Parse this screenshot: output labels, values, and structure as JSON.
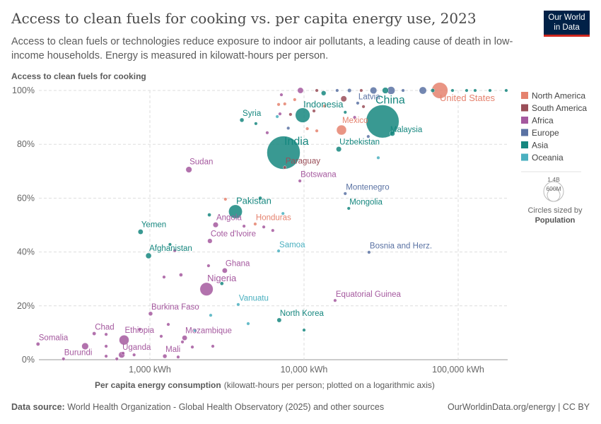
{
  "header": {
    "title": "Access to clean fuels for cooking vs. per capita energy use, 2023",
    "subtitle": "Access to clean fuels or technologies reduce exposure to indoor air pollutants, a leading cause of death in low-income households. Energy is measured in kilowatt-hours per person.",
    "logo": "Our World in Data"
  },
  "footer": {
    "source_label": "Data source:",
    "source": "World Health Organization - Global Health Observatory (2025) and other sources",
    "url": "OurWorldinData.org/energy | CC BY"
  },
  "legend": {
    "size_values": [
      "1.4B",
      "600M"
    ],
    "size_caption": "Circles sized by",
    "size_variable": "Population"
  },
  "chart_data": {
    "type": "scatter",
    "ylabel": "Access to clean fuels for cooking",
    "xlabel": "Per capita energy consumption",
    "xlabel_note": "(kilowatt-hours per person; plotted on a logarithmic axis)",
    "x_scale": "log",
    "xlim": [
      190,
      210000
    ],
    "ylim": [
      0,
      100
    ],
    "x_ticks": [
      1000,
      10000,
      100000
    ],
    "x_tick_labels": [
      "1,000 kWh",
      "10,000 kWh",
      "100,000 kWh"
    ],
    "y_ticks": [
      0,
      20,
      40,
      60,
      80,
      100
    ],
    "y_tick_labels": [
      "0%",
      "20%",
      "40%",
      "60%",
      "80%",
      "100%"
    ],
    "grid": true,
    "legend_position": "right",
    "regions": [
      {
        "name": "North America",
        "color": "#e5826e"
      },
      {
        "name": "South America",
        "color": "#9a4e58"
      },
      {
        "name": "Africa",
        "color": "#a5599f"
      },
      {
        "name": "Europe",
        "color": "#5a72a3"
      },
      {
        "name": "Asia",
        "color": "#16877f"
      },
      {
        "name": "Oceania",
        "color": "#4bb0c0"
      }
    ],
    "points": [
      {
        "name": "United States",
        "x": 76000,
        "y": 100,
        "region": "North America",
        "pop": 335
      },
      {
        "name": "China",
        "x": 32300,
        "y": 88.5,
        "region": "Asia",
        "pop": 1410
      },
      {
        "name": "India",
        "x": 7360,
        "y": 76.9,
        "region": "Asia",
        "pop": 1430
      },
      {
        "name": "Indonesia",
        "x": 9800,
        "y": 90.8,
        "region": "Asia",
        "pop": 277
      },
      {
        "name": "Malaysia",
        "x": 37400,
        "y": 84,
        "region": "Asia",
        "pop": 34
      },
      {
        "name": "Mexico",
        "x": 17500,
        "y": 85.3,
        "region": "North America",
        "pop": 128
      },
      {
        "name": "Latvia",
        "x": 22300,
        "y": 95.3,
        "region": "Europe",
        "pop": 2
      },
      {
        "name": "Uzbekistan",
        "x": 16800,
        "y": 78.2,
        "region": "Asia",
        "pop": 36
      },
      {
        "name": "Paraguay",
        "x": 7500,
        "y": 71.4,
        "region": "South America",
        "pop": 7
      },
      {
        "name": "Botswana",
        "x": 9400,
        "y": 66.4,
        "region": "Africa",
        "pop": 3
      },
      {
        "name": "Sudan",
        "x": 1790,
        "y": 70.6,
        "region": "Africa",
        "pop": 48
      },
      {
        "name": "Syria",
        "x": 3950,
        "y": 89,
        "region": "Asia",
        "pop": 23
      },
      {
        "name": "Pakistan",
        "x": 3590,
        "y": 55,
        "region": "Asia",
        "pop": 240
      },
      {
        "name": "Angola",
        "x": 2670,
        "y": 50.1,
        "region": "Africa",
        "pop": 37
      },
      {
        "name": "Honduras",
        "x": 4820,
        "y": 50.4,
        "region": "North America",
        "pop": 10
      },
      {
        "name": "Montenegro",
        "x": 18500,
        "y": 61.7,
        "region": "Europe",
        "pop": 1
      },
      {
        "name": "Mongolia",
        "x": 19500,
        "y": 56.2,
        "region": "Asia",
        "pop": 3
      },
      {
        "name": "Yemen",
        "x": 870,
        "y": 47.5,
        "region": "Asia",
        "pop": 34
      },
      {
        "name": "Cote d'Ivoire",
        "x": 2450,
        "y": 44.1,
        "region": "Africa",
        "pop": 29
      },
      {
        "name": "Afghanistan",
        "x": 980,
        "y": 38.6,
        "region": "Asia",
        "pop": 42
      },
      {
        "name": "Samoa",
        "x": 6840,
        "y": 40.4,
        "region": "Oceania",
        "pop": 0.2
      },
      {
        "name": "Bosnia and Herz.",
        "x": 26400,
        "y": 39.9,
        "region": "Europe",
        "pop": 3
      },
      {
        "name": "Ghana",
        "x": 3060,
        "y": 33.1,
        "region": "Africa",
        "pop": 34
      },
      {
        "name": "Nigeria",
        "x": 2330,
        "y": 26.2,
        "region": "Africa",
        "pop": 224
      },
      {
        "name": "Vanuatu",
        "x": 3740,
        "y": 20.5,
        "region": "Oceania",
        "pop": 0.3
      },
      {
        "name": "Equatorial Guinea",
        "x": 15900,
        "y": 22,
        "region": "Africa",
        "pop": 2
      },
      {
        "name": "Burkina Faso",
        "x": 1010,
        "y": 17.1,
        "region": "Africa",
        "pop": 23
      },
      {
        "name": "North Korea",
        "x": 6900,
        "y": 14.7,
        "region": "Asia",
        "pop": 26
      },
      {
        "name": "Chad",
        "x": 435,
        "y": 9.7,
        "region": "Africa",
        "pop": 18
      },
      {
        "name": "Ethiopia",
        "x": 680,
        "y": 7.3,
        "region": "Africa",
        "pop": 127
      },
      {
        "name": "Mozambique",
        "x": 1680,
        "y": 8.1,
        "region": "Africa",
        "pop": 34
      },
      {
        "name": "Somalia",
        "x": 188,
        "y": 5.8,
        "region": "Africa",
        "pop": 18
      },
      {
        "name": "Uganda",
        "x": 656,
        "y": 1.8,
        "region": "Africa",
        "pop": 49
      },
      {
        "name": "Mali",
        "x": 1250,
        "y": 1.3,
        "region": "Africa",
        "pop": 23
      },
      {
        "name": "Burundi",
        "x": 275,
        "y": 0.3,
        "region": "Africa",
        "pop": 13
      },
      {
        "name": "",
        "x": 9480,
        "y": 100,
        "region": "Africa",
        "pop": 45
      },
      {
        "name": "",
        "x": 12100,
        "y": 100,
        "region": "South America",
        "pop": 5
      },
      {
        "name": "",
        "x": 13400,
        "y": 99,
        "region": "Asia",
        "pop": 30
      },
      {
        "name": "",
        "x": 16400,
        "y": 100,
        "region": "Europe",
        "pop": 8
      },
      {
        "name": "",
        "x": 19700,
        "y": 100,
        "region": "Europe",
        "pop": 20
      },
      {
        "name": "",
        "x": 23500,
        "y": 100,
        "region": "South America",
        "pop": 10
      },
      {
        "name": "",
        "x": 28200,
        "y": 100,
        "region": "Europe",
        "pop": 60
      },
      {
        "name": "",
        "x": 33700,
        "y": 100,
        "region": "Asia",
        "pop": 50
      },
      {
        "name": "",
        "x": 36700,
        "y": 100,
        "region": "Europe",
        "pop": 80
      },
      {
        "name": "",
        "x": 43900,
        "y": 100,
        "region": "Europe",
        "pop": 5
      },
      {
        "name": "",
        "x": 59000,
        "y": 100,
        "region": "Europe",
        "pop": 70
      },
      {
        "name": "",
        "x": 68400,
        "y": 100,
        "region": "Asia",
        "pop": 20
      },
      {
        "name": "",
        "x": 91900,
        "y": 100,
        "region": "Asia",
        "pop": 5
      },
      {
        "name": "",
        "x": 113500,
        "y": 100,
        "region": "Asia",
        "pop": 3
      },
      {
        "name": "",
        "x": 128800,
        "y": 100,
        "region": "Asia",
        "pop": 4
      },
      {
        "name": "",
        "x": 160800,
        "y": 100,
        "region": "Asia",
        "pop": 2
      },
      {
        "name": "",
        "x": 205000,
        "y": 100,
        "region": "Asia",
        "pop": 1
      },
      {
        "name": "",
        "x": 7130,
        "y": 98.4,
        "region": "Africa",
        "pop": 5
      },
      {
        "name": "",
        "x": 6840,
        "y": 94.8,
        "region": "North America",
        "pop": 2
      },
      {
        "name": "",
        "x": 7500,
        "y": 95,
        "region": "North America",
        "pop": 2
      },
      {
        "name": "",
        "x": 8700,
        "y": 96.6,
        "region": "North America",
        "pop": 2
      },
      {
        "name": "",
        "x": 6980,
        "y": 91.3,
        "region": "Africa",
        "pop": 2
      },
      {
        "name": "",
        "x": 6700,
        "y": 90.3,
        "region": "Oceania",
        "pop": 1
      },
      {
        "name": "",
        "x": 8170,
        "y": 91.1,
        "region": "South America",
        "pop": 2
      },
      {
        "name": "",
        "x": 11600,
        "y": 92.4,
        "region": "South America",
        "pop": 12
      },
      {
        "name": "",
        "x": 13600,
        "y": 94.2,
        "region": "North America",
        "pop": 2
      },
      {
        "name": "",
        "x": 18100,
        "y": 96.9,
        "region": "South America",
        "pop": 46
      },
      {
        "name": "",
        "x": 24300,
        "y": 94,
        "region": "South America",
        "pop": 8
      },
      {
        "name": "",
        "x": 21300,
        "y": 90,
        "region": "Africa",
        "pop": 12
      },
      {
        "name": "",
        "x": 18500,
        "y": 91.9,
        "region": "Asia",
        "pop": 1
      },
      {
        "name": "",
        "x": 10500,
        "y": 85.8,
        "region": "North America",
        "pop": 2
      },
      {
        "name": "",
        "x": 12100,
        "y": 85,
        "region": "North America",
        "pop": 2
      },
      {
        "name": "",
        "x": 7900,
        "y": 86,
        "region": "Europe",
        "pop": 2
      },
      {
        "name": "",
        "x": 5770,
        "y": 84.3,
        "region": "Africa",
        "pop": 2
      },
      {
        "name": "",
        "x": 26100,
        "y": 82.9,
        "region": "Europe",
        "pop": 2
      },
      {
        "name": "",
        "x": 30300,
        "y": 75,
        "region": "Oceania",
        "pop": 1
      },
      {
        "name": "",
        "x": 4870,
        "y": 87.7,
        "region": "Asia",
        "pop": 2
      },
      {
        "name": "",
        "x": 3090,
        "y": 59.6,
        "region": "North America",
        "pop": 2
      },
      {
        "name": "",
        "x": 2430,
        "y": 53.8,
        "region": "Asia",
        "pop": 17
      },
      {
        "name": "",
        "x": 5200,
        "y": 60,
        "region": "Asia",
        "pop": 17
      },
      {
        "name": "",
        "x": 7300,
        "y": 54.3,
        "region": "Oceania",
        "pop": 1
      },
      {
        "name": "",
        "x": 4080,
        "y": 49.6,
        "region": "Africa",
        "pop": 2
      },
      {
        "name": "",
        "x": 5480,
        "y": 49.3,
        "region": "Africa",
        "pop": 2
      },
      {
        "name": "",
        "x": 6270,
        "y": 48,
        "region": "Africa",
        "pop": 2
      },
      {
        "name": "",
        "x": 1450,
        "y": 40.5,
        "region": "Africa",
        "pop": 2
      },
      {
        "name": "",
        "x": 1350,
        "y": 42.8,
        "region": "Asia",
        "pop": 3
      },
      {
        "name": "",
        "x": 2400,
        "y": 34.9,
        "region": "Africa",
        "pop": 2
      },
      {
        "name": "",
        "x": 1235,
        "y": 30.7,
        "region": "Africa",
        "pop": 5
      },
      {
        "name": "",
        "x": 1590,
        "y": 31.5,
        "region": "Africa",
        "pop": 17
      },
      {
        "name": "",
        "x": 2930,
        "y": 28.3,
        "region": "Asia",
        "pop": 17
      },
      {
        "name": "",
        "x": 2480,
        "y": 16.5,
        "region": "Oceania",
        "pop": 1
      },
      {
        "name": "",
        "x": 4340,
        "y": 13.4,
        "region": "Oceania",
        "pop": 1
      },
      {
        "name": "",
        "x": 10000,
        "y": 11,
        "region": "Asia",
        "pop": 1
      },
      {
        "name": "",
        "x": 1316,
        "y": 13.1,
        "region": "Africa",
        "pop": 2
      },
      {
        "name": "",
        "x": 860,
        "y": 11.3,
        "region": "Africa",
        "pop": 2
      },
      {
        "name": "",
        "x": 520,
        "y": 9.4,
        "region": "Africa",
        "pop": 2
      },
      {
        "name": "",
        "x": 520,
        "y": 5,
        "region": "Africa",
        "pop": 4
      },
      {
        "name": "",
        "x": 380,
        "y": 5,
        "region": "Africa",
        "pop": 60
      },
      {
        "name": "",
        "x": 1184,
        "y": 8.7,
        "region": "Africa",
        "pop": 5
      },
      {
        "name": "",
        "x": 1626,
        "y": 6.6,
        "region": "Africa",
        "pop": 8
      },
      {
        "name": "",
        "x": 2560,
        "y": 5,
        "region": "Africa",
        "pop": 3
      },
      {
        "name": "",
        "x": 1885,
        "y": 4.7,
        "region": "Africa",
        "pop": 4
      },
      {
        "name": "",
        "x": 520,
        "y": 1.3,
        "region": "Africa",
        "pop": 6
      },
      {
        "name": "",
        "x": 670,
        "y": 2.4,
        "region": "Africa",
        "pop": 3
      },
      {
        "name": "",
        "x": 790,
        "y": 1.8,
        "region": "Africa",
        "pop": 3
      },
      {
        "name": "",
        "x": 610,
        "y": 0.3,
        "region": "Africa",
        "pop": 2
      },
      {
        "name": "",
        "x": 1525,
        "y": 1,
        "region": "Africa",
        "pop": 2
      },
      {
        "name": "",
        "x": 1965,
        "y": 10.8,
        "region": "Oceania",
        "pop": 1
      }
    ]
  }
}
